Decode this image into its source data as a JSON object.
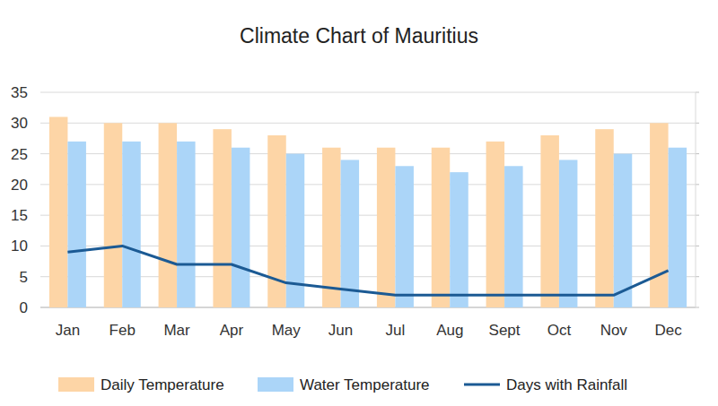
{
  "chart_data": {
    "type": "bar",
    "title": "Climate Chart of Mauritius",
    "categories": [
      "Jan",
      "Feb",
      "Mar",
      "Apr",
      "May",
      "Jun",
      "Jul",
      "Aug",
      "Sept",
      "Oct",
      "Nov",
      "Dec"
    ],
    "series": [
      {
        "name": "Daily Temperature",
        "color": "#fdd5a6",
        "type": "bar",
        "values": [
          31,
          30,
          30,
          29,
          28,
          26,
          26,
          26,
          27,
          28,
          29,
          30
        ]
      },
      {
        "name": "Water Temperature",
        "color": "#abd5f8",
        "type": "bar",
        "values": [
          27,
          27,
          27,
          26,
          25,
          24,
          23,
          22,
          23,
          24,
          25,
          26
        ]
      },
      {
        "name": "Days with Rainfall",
        "color": "#1b5a94",
        "type": "line",
        "values": [
          9,
          10,
          7,
          7,
          4,
          3,
          2,
          2,
          2,
          2,
          2,
          6
        ]
      }
    ],
    "ylim": [
      0,
      35
    ],
    "yticks": [
      0,
      5,
      10,
      15,
      20,
      25,
      30,
      35
    ],
    "grid": true,
    "legend": "bottom"
  }
}
